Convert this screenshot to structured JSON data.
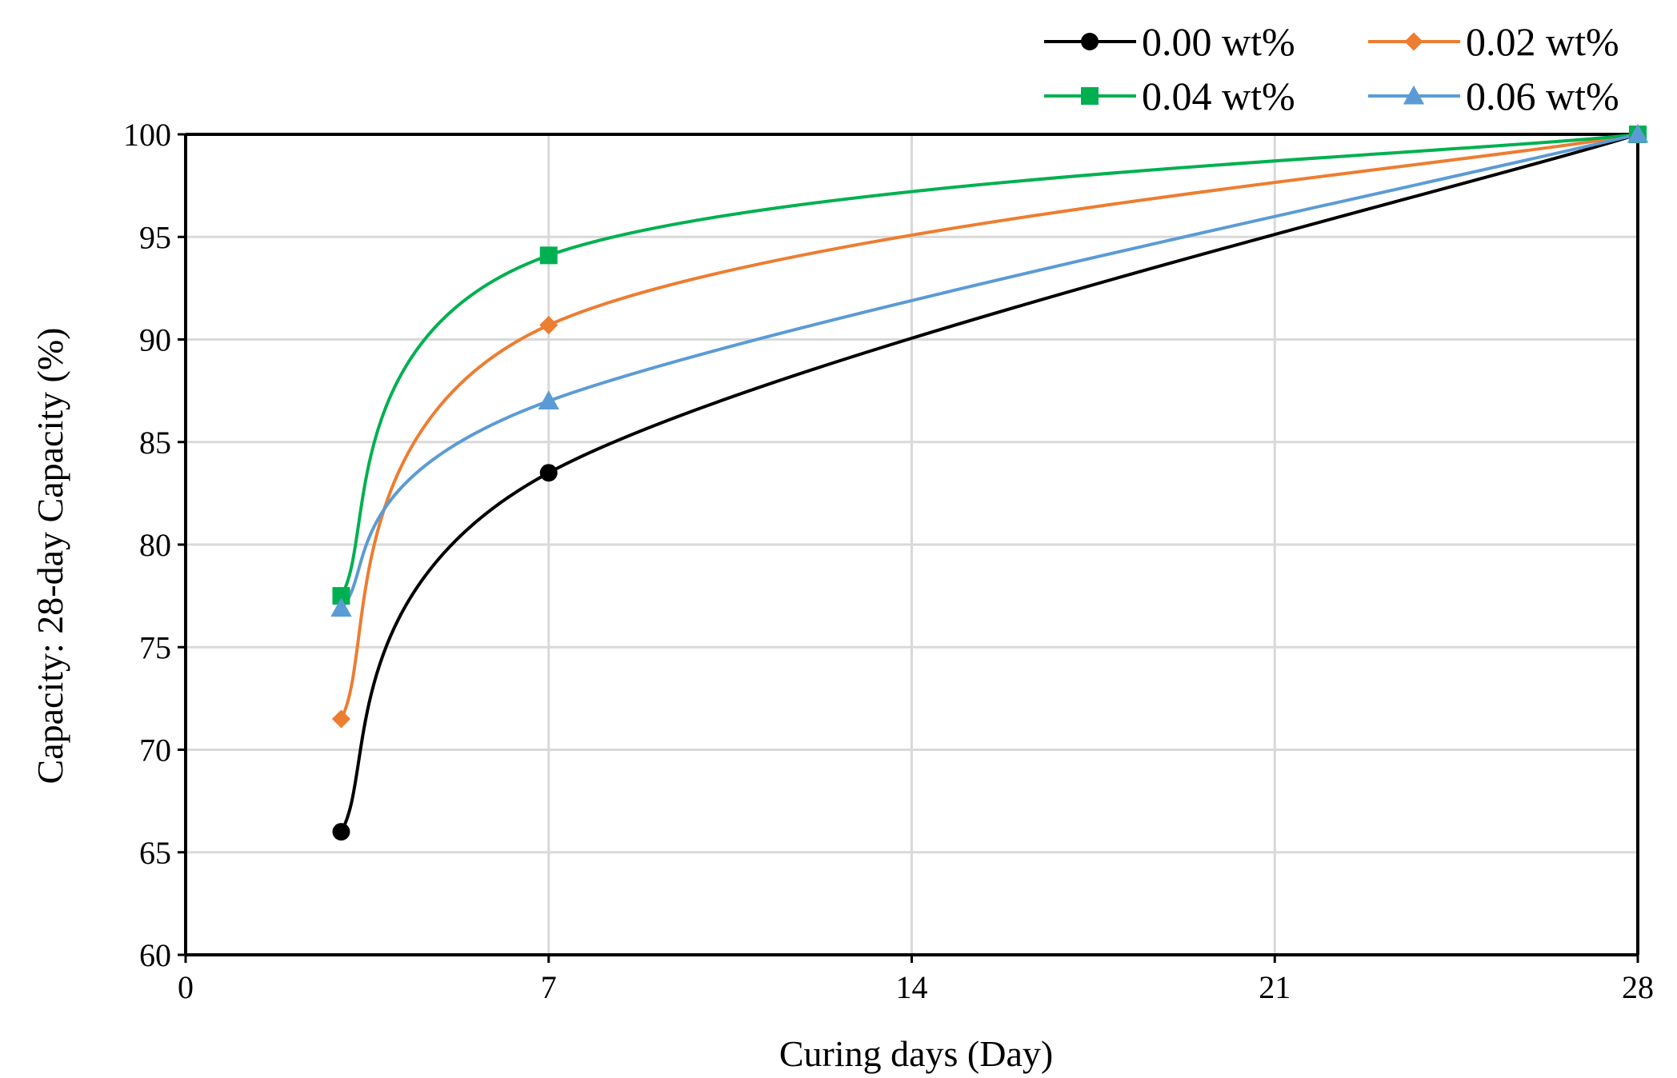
{
  "chart_data": {
    "type": "line",
    "title": "",
    "xlabel": "Curing days (Day)",
    "ylabel": "Capacity: 28-day Capacity (%)",
    "xlim": [
      0,
      28
    ],
    "ylim": [
      60,
      100
    ],
    "xticks": [
      "0",
      "7",
      "14",
      "21",
      "28"
    ],
    "yticks": [
      "60",
      "65",
      "70",
      "75",
      "80",
      "85",
      "90",
      "95",
      "100"
    ],
    "grid": true,
    "smooth": true,
    "legend_position": "top-right",
    "x": [
      3,
      7,
      28
    ],
    "series": [
      {
        "name": "0.00 wt%",
        "color": "#000000",
        "marker": "circle",
        "values": [
          66.0,
          83.5,
          100
        ]
      },
      {
        "name": "0.02 wt%",
        "color": "#ED7D31",
        "marker": "diamond",
        "values": [
          71.5,
          90.7,
          100
        ]
      },
      {
        "name": "0.04 wt%",
        "color": "#00B050",
        "marker": "square",
        "values": [
          77.5,
          94.1,
          100
        ]
      },
      {
        "name": "0.06 wt%",
        "color": "#5B9BD5",
        "marker": "triangle",
        "values": [
          76.9,
          87.0,
          100
        ]
      }
    ]
  }
}
